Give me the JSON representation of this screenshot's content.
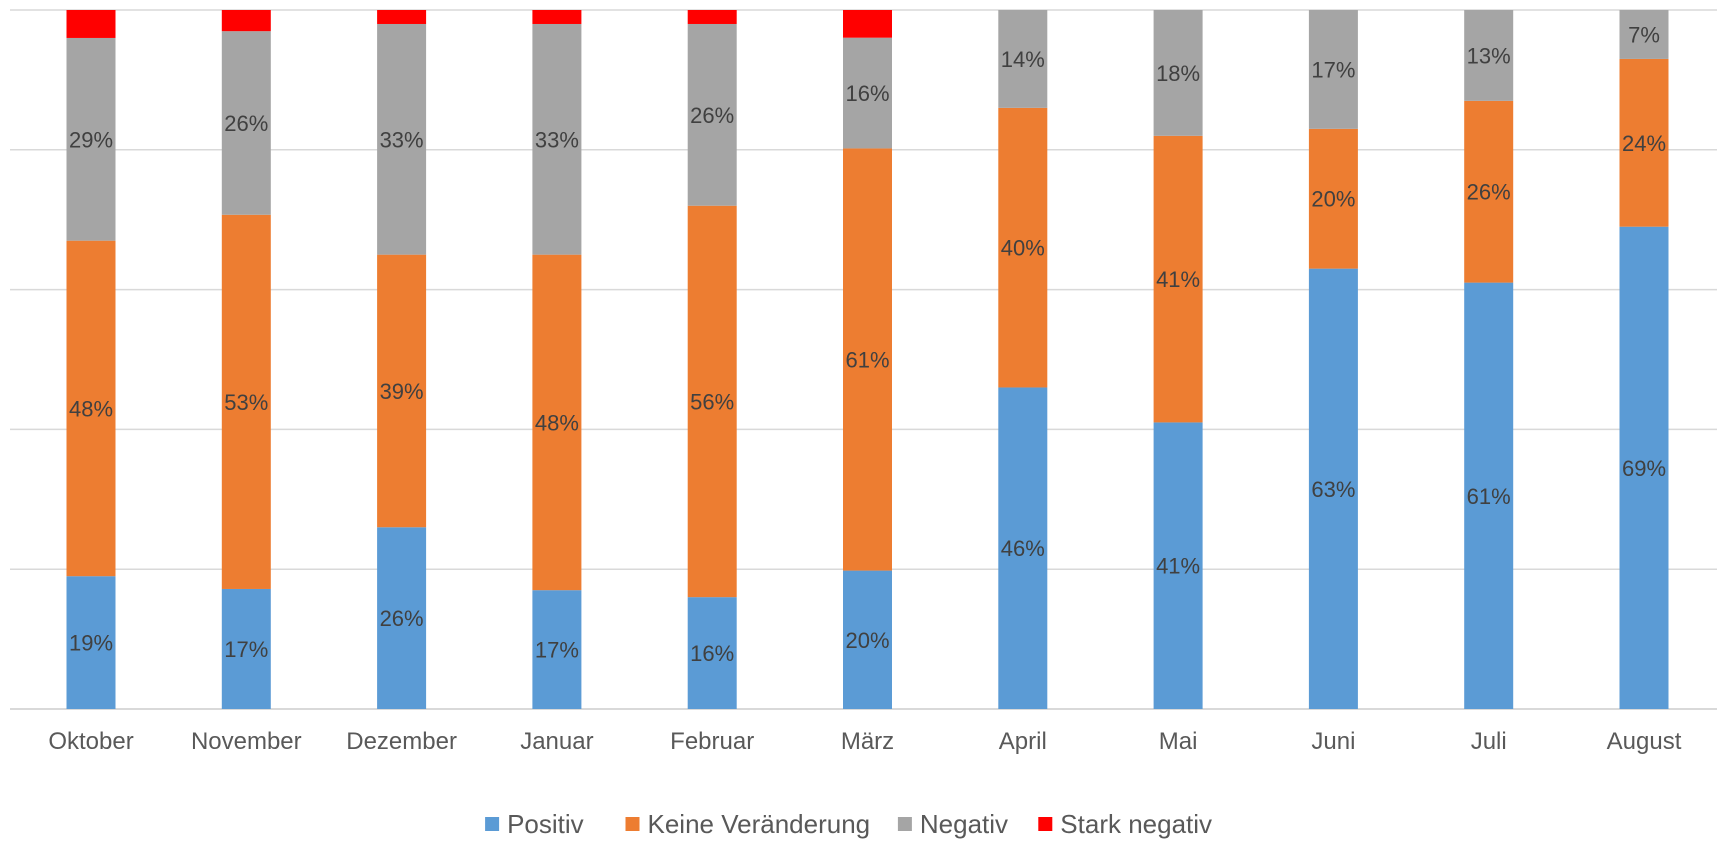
{
  "chart_data": {
    "type": "bar",
    "stacked": true,
    "percent_stacked": true,
    "title": "",
    "xlabel": "",
    "ylabel": "",
    "ylim": [
      0,
      100
    ],
    "y_ticks_shown": false,
    "grid": true,
    "legend_position": "bottom",
    "categories": [
      "Oktober",
      "November",
      "Dezember",
      "Januar",
      "Februar",
      "März",
      "April",
      "Mai",
      "Juni",
      "Juli",
      "August"
    ],
    "series": [
      {
        "name": "Positiv",
        "color": "#5b9bd5",
        "values": [
          19,
          17,
          26,
          17,
          16,
          20,
          46,
          41,
          63,
          61,
          69
        ],
        "labels": [
          "19%",
          "17%",
          "26%",
          "17%",
          "16%",
          "20%",
          "46%",
          "41%",
          "63%",
          "61%",
          "69%"
        ]
      },
      {
        "name": "Keine Veränderung",
        "color": "#ed7d31",
        "values": [
          48,
          53,
          39,
          48,
          56,
          61,
          40,
          41,
          20,
          26,
          24
        ],
        "labels": [
          "48%",
          "53%",
          "39%",
          "48%",
          "56%",
          "61%",
          "40%",
          "41%",
          "20%",
          "26%",
          "24%"
        ]
      },
      {
        "name": "Negativ",
        "color": "#a5a5a5",
        "values": [
          29,
          26,
          33,
          33,
          26,
          16,
          14,
          18,
          17,
          13,
          7
        ],
        "labels": [
          "29%",
          "26%",
          "33%",
          "33%",
          "26%",
          "16%",
          "14%",
          "18%",
          "17%",
          "13%",
          "7%"
        ]
      },
      {
        "name": "Stark negativ",
        "color": "#ff0000",
        "values": [
          4,
          3,
          2,
          2,
          2,
          4,
          0,
          0,
          0,
          0,
          0
        ],
        "labels": [
          "",
          "",
          "",
          "",
          "",
          "",
          "",
          "",
          "",
          "",
          ""
        ]
      }
    ],
    "gridline_color": "#d9d9d9",
    "axis_color": "#d9d9d9"
  }
}
